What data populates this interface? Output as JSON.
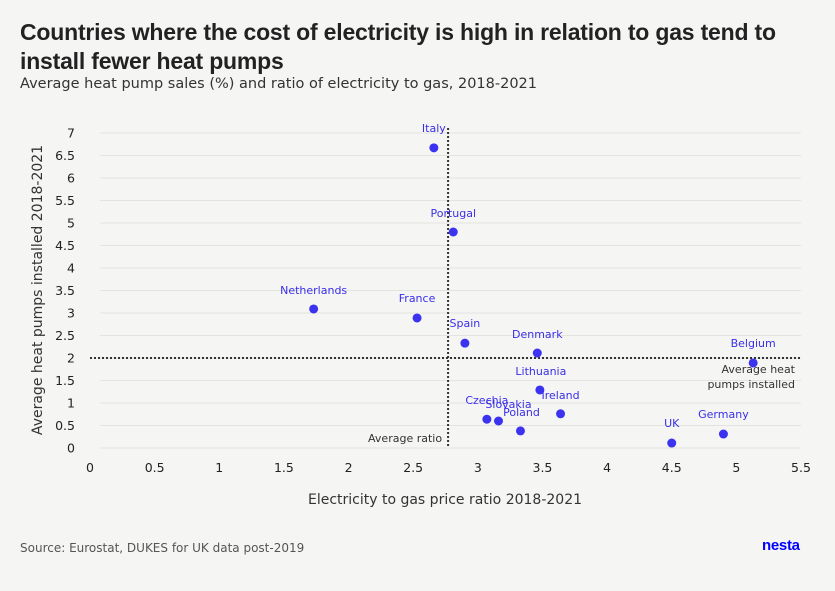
{
  "header": {
    "title": "Countries where the cost of electricity is high in relation to gas tend to install fewer heat pumps",
    "subtitle": "Average heat pump sales (%) and ratio of electricity to gas, 2018-2021"
  },
  "footer": {
    "source": "Source: Eurostat, DUKES for UK data post-2019",
    "logo": "nesta"
  },
  "colors": {
    "point": "#3c33f0",
    "label": "#3a2ee8",
    "grid": "#e2e4e0",
    "reference_line": "#333333"
  },
  "chart_data": {
    "type": "scatter",
    "title": "Countries where the cost of electricity is high in relation to gas tend to install fewer heat pumps",
    "subtitle": "Average heat pump sales (%) and ratio of electricity to gas, 2018-2021",
    "xlabel": "Electricity to gas price ratio 2018-2021",
    "ylabel": "Average heat pumps installed 2018-2021",
    "xlim": [
      0,
      5.5
    ],
    "ylim": [
      0,
      7
    ],
    "x_ticks": [
      "0",
      "0.5",
      "1",
      "1.5",
      "2",
      "2.5",
      "3",
      "3.5",
      "4",
      "4.5",
      "5",
      "5.5"
    ],
    "y_ticks": [
      "0",
      "0.5",
      "1",
      "1.5",
      "2",
      "2.5",
      "3",
      "3.5",
      "4",
      "4.5",
      "5",
      "5.5",
      "6",
      "6.5",
      "7"
    ],
    "grid": "horizontal",
    "points": [
      {
        "label": "Italy",
        "x": 2.66,
        "y": 6.67
      },
      {
        "label": "Portugal",
        "x": 2.81,
        "y": 4.8
      },
      {
        "label": "Netherlands",
        "x": 1.73,
        "y": 3.09
      },
      {
        "label": "France",
        "x": 2.53,
        "y": 2.89
      },
      {
        "label": "Spain",
        "x": 2.9,
        "y": 2.33
      },
      {
        "label": "Denmark",
        "x": 3.46,
        "y": 2.11
      },
      {
        "label": "Belgium",
        "x": 5.13,
        "y": 1.89
      },
      {
        "label": "Lithuania",
        "x": 3.48,
        "y": 1.29
      },
      {
        "label": "Ireland",
        "x": 3.64,
        "y": 0.76
      },
      {
        "label": "Czechia",
        "x": 3.07,
        "y": 0.64
      },
      {
        "label": "Slovakia",
        "x": 3.16,
        "y": 0.6
      },
      {
        "label": "Poland",
        "x": 3.33,
        "y": 0.38
      },
      {
        "label": "UK",
        "x": 4.5,
        "y": 0.11
      },
      {
        "label": "Germany",
        "x": 4.9,
        "y": 0.31
      }
    ],
    "reference_lines": [
      {
        "axis": "x",
        "value": 2.77,
        "label": "Average ratio"
      },
      {
        "axis": "y",
        "value": 2.0,
        "label": "Average heat pumps installed",
        "label_lines": [
          "Average heat",
          "pumps installed"
        ]
      }
    ]
  }
}
